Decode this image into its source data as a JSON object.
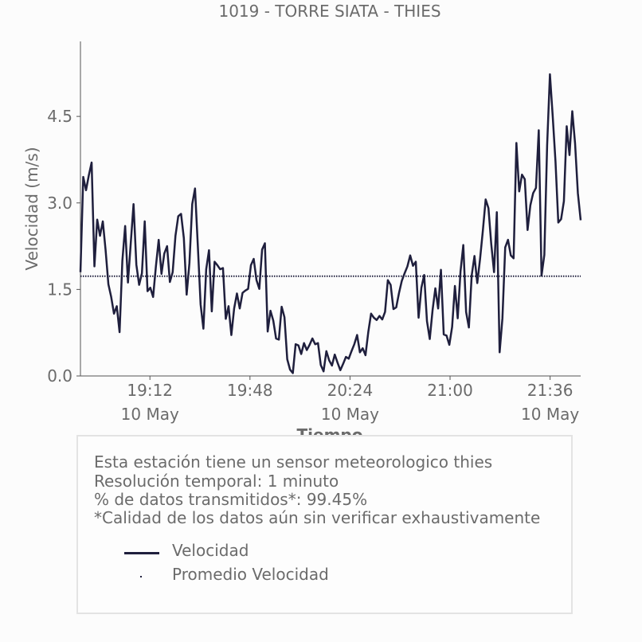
{
  "chart_data": {
    "type": "line",
    "title": "1019 - TORRE SIATA - THIES",
    "xlabel": "Tiempo",
    "ylabel": "Velocidad (m/s)",
    "x_time_start": "18:47",
    "x_time_end": "21:47",
    "ylim": [
      0,
      5.8
    ],
    "yticks": [
      0.0,
      1.5,
      3.0,
      4.5
    ],
    "ytick_labels": [
      "0.0",
      "1.5",
      "3.0",
      "4.5"
    ],
    "xticks": [
      {
        "time": "19:12",
        "label": "19:12",
        "sublabel": "10 May"
      },
      {
        "time": "19:48",
        "label": "19:48",
        "sublabel": ""
      },
      {
        "time": "20:24",
        "label": "20:24",
        "sublabel": "10 May"
      },
      {
        "time": "21:00",
        "label": "21:00",
        "sublabel": ""
      },
      {
        "time": "21:36",
        "label": "21:36",
        "sublabel": "10 May"
      }
    ],
    "grid": false,
    "series": [
      {
        "name": "Velocidad",
        "color": "#1f1f3d",
        "style": "solid",
        "values": [
          1.8,
          3.45,
          3.22,
          3.48,
          3.7,
          1.9,
          2.71,
          2.43,
          2.68,
          2.18,
          1.59,
          1.37,
          1.08,
          1.21,
          0.76,
          2.0,
          2.6,
          1.62,
          2.3,
          2.98,
          1.93,
          1.58,
          1.78,
          2.68,
          1.47,
          1.53,
          1.37,
          1.9,
          2.36,
          1.77,
          2.12,
          2.25,
          1.63,
          1.8,
          2.43,
          2.77,
          2.81,
          2.39,
          1.41,
          1.96,
          2.98,
          3.25,
          2.26,
          1.24,
          0.82,
          1.85,
          2.18,
          1.12,
          1.98,
          1.92,
          1.85,
          1.87,
          0.99,
          1.21,
          0.71,
          1.17,
          1.43,
          1.17,
          1.44,
          1.48,
          1.51,
          1.92,
          2.03,
          1.66,
          1.51,
          2.19,
          2.3,
          0.77,
          1.13,
          0.96,
          0.65,
          0.63,
          1.2,
          1.02,
          0.29,
          0.11,
          0.05,
          0.55,
          0.53,
          0.38,
          0.57,
          0.45,
          0.54,
          0.65,
          0.55,
          0.57,
          0.19,
          0.08,
          0.43,
          0.27,
          0.18,
          0.37,
          0.23,
          0.1,
          0.21,
          0.33,
          0.3,
          0.43,
          0.55,
          0.71,
          0.41,
          0.48,
          0.36,
          0.76,
          1.08,
          1.01,
          0.97,
          1.04,
          0.98,
          1.11,
          1.66,
          1.58,
          1.16,
          1.19,
          1.44,
          1.65,
          1.78,
          1.9,
          2.09,
          1.91,
          1.98,
          1.01,
          1.53,
          1.75,
          0.95,
          0.64,
          1.14,
          1.52,
          1.17,
          1.84,
          0.72,
          0.7,
          0.54,
          0.85,
          1.56,
          1.0,
          1.81,
          2.27,
          1.11,
          0.84,
          1.74,
          2.08,
          1.61,
          2.03,
          2.52,
          3.06,
          2.91,
          2.29,
          1.8,
          2.84,
          0.41,
          1.0,
          2.23,
          2.36,
          2.09,
          2.04,
          4.04,
          3.2,
          3.49,
          3.41,
          2.53,
          2.96,
          3.17,
          3.26,
          4.26,
          1.74,
          2.1,
          4.0,
          5.23,
          4.5,
          3.71,
          2.66,
          2.72,
          3.03,
          4.33,
          3.83,
          4.59,
          4.03,
          3.17,
          2.7
        ]
      },
      {
        "name": "Promedio Velocidad",
        "color": "#1f1f3d",
        "style": "dotted",
        "constant": 1.73
      }
    ]
  },
  "info": {
    "line1": "Esta estación tiene un sensor meteorologico thies",
    "line2": "Resolución temporal: 1 minuto",
    "line3": "% de datos transmitidos*: 99.45%",
    "line4": "*Calidad de los datos aún sin verificar exhaustivamente"
  },
  "legend": {
    "item1": "Velocidad",
    "item2": "Promedio Velocidad"
  }
}
